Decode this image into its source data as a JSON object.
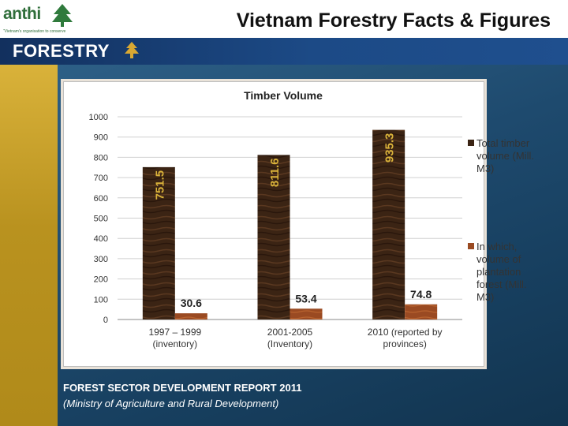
{
  "logo": {
    "name": "anthi",
    "tagline": "“Vietnam's organisation to conserve"
  },
  "slide": {
    "title": "Vietnam Forestry Facts & Figures"
  },
  "banner": {
    "label": "FORESTRY"
  },
  "source": {
    "line1": "FOREST SECTOR DEVELOPMENT REPORT 2011",
    "line2": "(Ministry of Agriculture and Rural Development)"
  },
  "colors": {
    "series_total": "#3b2414",
    "series_plantation": "#9a4a22",
    "band": "#1c4a86",
    "sidebar": "#c9a22c"
  },
  "chart_data": {
    "type": "bar",
    "title": "Timber Volume",
    "categories": [
      [
        "1997 – 1999",
        "(inventory)"
      ],
      [
        "2001-2005",
        "(Inventory)"
      ],
      [
        "2010 (reported by",
        "provinces)"
      ]
    ],
    "series": [
      {
        "name": "Total timber volume (Mill. M3)",
        "legend_lines": [
          "Total timber",
          "volume (Mill.",
          "M3)"
        ],
        "values": [
          751.5,
          811.6,
          935.3
        ],
        "labels": [
          "751.5",
          "811.6",
          "935.3"
        ]
      },
      {
        "name": "In which, volume of plantation forest (Mill. M3)",
        "legend_lines": [
          "In which,",
          "volume of",
          "plantation",
          "forest (Mill.",
          "M3)"
        ],
        "values": [
          30.6,
          53.4,
          74.8
        ],
        "labels": [
          "30.6",
          "53.4",
          "74.8"
        ]
      }
    ],
    "ylim": [
      0,
      1000
    ],
    "yticks": [
      0,
      100,
      200,
      300,
      400,
      500,
      600,
      700,
      800,
      900,
      1000
    ],
    "grid": true,
    "legend_position": "right"
  }
}
